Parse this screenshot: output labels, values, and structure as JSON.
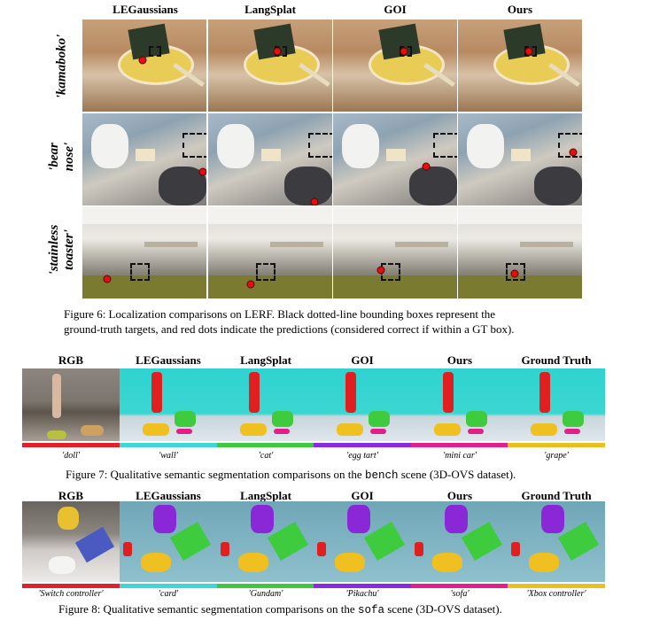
{
  "fig6": {
    "columns": [
      "LEGaussians",
      "LangSplat",
      "GOI",
      "Ours"
    ],
    "rows": [
      {
        "label_lines": [
          "'kamaboko'"
        ]
      },
      {
        "label_lines": [
          "'bear",
          "nose'"
        ]
      },
      {
        "label_lines": [
          "'stainless",
          "toaster'"
        ]
      }
    ],
    "caption_line1": "Figure 6:  Localization comparisons on LERF. Black dotted-line bounding boxes represent the",
    "caption_line2": "ground-truth targets, and red dots indicate the predictions (considered correct if within a GT box)."
  },
  "fig7": {
    "columns": [
      "RGB",
      "LEGaussians",
      "LangSplat",
      "GOI",
      "Ours",
      "Ground Truth"
    ],
    "labels": [
      "'doll'",
      "'wall'",
      "'cat'",
      "'egg tart'",
      "'mini car'",
      "'grape'"
    ],
    "bar_colors": [
      "#e0202a",
      "#3fd6d8",
      "#3ec83e",
      "#8a2be2",
      "#e0208c",
      "#e8c020"
    ],
    "caption_pre": "Figure 7: Qualitative semantic segmentation comparisons on the ",
    "caption_mono": "bench",
    "caption_post": " scene (3D-OVS dataset)."
  },
  "fig8": {
    "columns": [
      "RGB",
      "LEGaussians",
      "LangSplat",
      "GOI",
      "Ours",
      "Ground Truth"
    ],
    "labels": [
      "'Switch controller'",
      "'card'",
      "'Gundam'",
      "'Pikachu'",
      "'sofa'",
      "'Xbox controller'"
    ],
    "bar_colors": [
      "#e0202a",
      "#3fd6d8",
      "#3ec83e",
      "#8a2be2",
      "#e0208c",
      "#e8c020"
    ],
    "caption_pre": "Figure 8: Qualitative semantic segmentation comparisons on the ",
    "caption_mono": "sofa",
    "caption_post": " scene (3D-OVS dataset)."
  }
}
